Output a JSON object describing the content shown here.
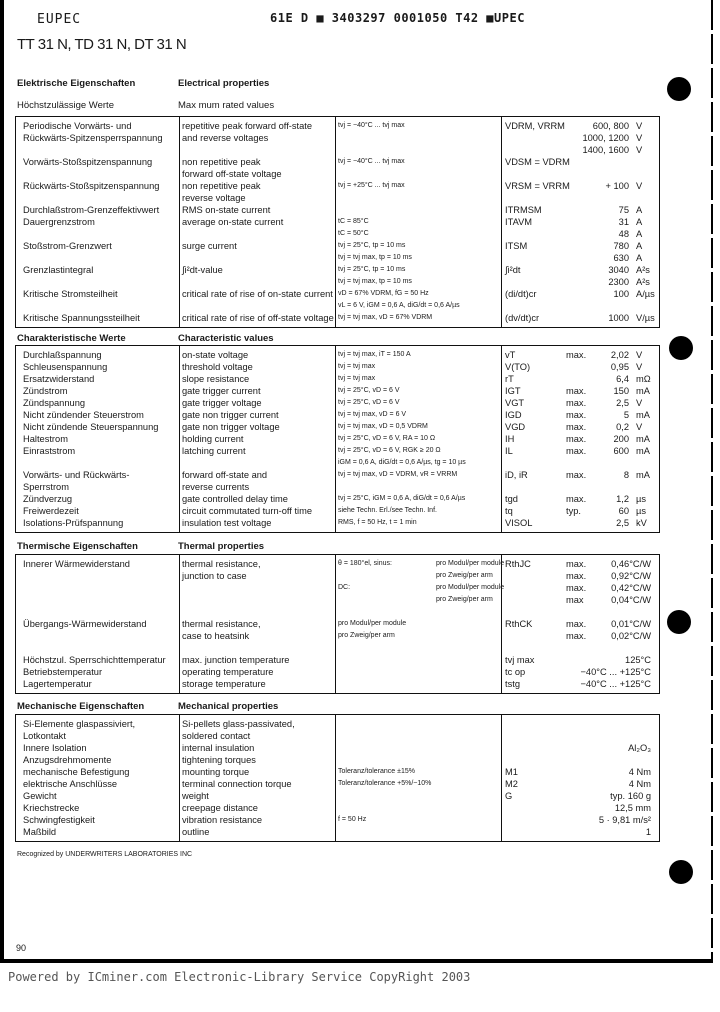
{
  "header": {
    "brand": "EUPEC",
    "code": "61E D ■ 3403297 0001050 T42 ■UPEC",
    "title": "TT 31 N, TD 31 N, DT 31 N"
  },
  "sections": [
    {
      "de": "Elektrische Eigenschaften",
      "en": "Electrical properties",
      "sub_de": "Höchstzulässige Werte",
      "sub_en": "Max mum rated values",
      "rows": [
        {
          "de": "Periodische Vorwärts- und",
          "en": "repetitive peak forward off-state",
          "ca": "tvj = −40°C ... tvj max",
          "cb": "",
          "sym": "VDRM, VRRM",
          "q": "",
          "val": "600, 800",
          "unit": "V"
        },
        {
          "de": "Rückwärts-Spitzensperrspannung",
          "en": "and reverse voltages",
          "ca": "",
          "cb": "",
          "sym": "",
          "q": "",
          "val": "1000, 1200",
          "unit": "V"
        },
        {
          "de": "",
          "en": "",
          "ca": "",
          "cb": "",
          "sym": "",
          "q": "",
          "val": "1400, 1600",
          "unit": "V"
        },
        {
          "de": "Vorwärts-Stoßspitzenspannung",
          "en": "non repetitive peak",
          "ca": "tvj = −40°C ... tvj max",
          "cb": "",
          "sym": "VDSM = VDRM",
          "q": "",
          "val": "",
          "unit": ""
        },
        {
          "de": "",
          "en": "forward off-state voltage",
          "ca": "",
          "cb": "",
          "sym": "",
          "q": "",
          "val": "",
          "unit": ""
        },
        {
          "de": "Rückwärts-Stoßspitzenspannung",
          "en": "non repetitive peak",
          "ca": "tvj = +25°C ... tvj max",
          "cb": "",
          "sym": "VRSM = VRRM",
          "q": "",
          "val": "+ 100",
          "unit": "V"
        },
        {
          "de": "",
          "en": "reverse voltage",
          "ca": "",
          "cb": "",
          "sym": "",
          "q": "",
          "val": "",
          "unit": ""
        },
        {
          "de": "Durchlaßstrom-Grenzeffektivwert",
          "en": "RMS on-state current",
          "ca": "",
          "cb": "",
          "sym": "ITRMSM",
          "q": "",
          "val": "75",
          "unit": "A"
        },
        {
          "de": "Dauergrenzstrom",
          "en": "average on-state current",
          "ca": "tC = 85°C",
          "cb": "",
          "sym": "ITAVM",
          "q": "",
          "val": "31",
          "unit": "A"
        },
        {
          "de": "",
          "en": "",
          "ca": "tC = 50°C",
          "cb": "",
          "sym": "",
          "q": "",
          "val": "48",
          "unit": "A"
        },
        {
          "de": "Stoßstrom-Grenzwert",
          "en": "surge current",
          "ca": "tvj = 25°C, tp = 10 ms",
          "cb": "",
          "sym": "ITSM",
          "q": "",
          "val": "780",
          "unit": "A"
        },
        {
          "de": "",
          "en": "",
          "ca": "tvj = tvj max, tp = 10 ms",
          "cb": "",
          "sym": "",
          "q": "",
          "val": "630",
          "unit": "A"
        },
        {
          "de": "Grenzlastintegral",
          "en": "∫i²dt-value",
          "ca": "tvj = 25°C, tp = 10 ms",
          "cb": "",
          "sym": "∫i²dt",
          "q": "",
          "val": "3040",
          "unit": "A²s"
        },
        {
          "de": "",
          "en": "",
          "ca": "tvj = tvj max, tp = 10 ms",
          "cb": "",
          "sym": "",
          "q": "",
          "val": "2300",
          "unit": "A²s"
        },
        {
          "de": "Kritische Stromsteilheit",
          "en": "critical rate of rise of on-state current",
          "ca": "vD = 67% VDRM, fG = 50 Hz",
          "cb": "",
          "sym": "(di/dt)cr",
          "q": "",
          "val": "100",
          "unit": "A/µs"
        },
        {
          "de": "",
          "en": "",
          "ca": "vL = 6 V, iGM = 0,6 A, diG/dt = 0,6 A/µs",
          "cb": "",
          "sym": "",
          "q": "",
          "val": "",
          "unit": ""
        },
        {
          "de": "Kritische Spannungssteilheit",
          "en": "critical rate of rise of off-state voltage",
          "ca": "tvj = tvj max, vD = 67% VDRM",
          "cb": "",
          "sym": "(dv/dt)cr",
          "q": "",
          "val": "1000",
          "unit": "V/µs"
        }
      ]
    },
    {
      "de": "Charakteristische Werte",
      "en": "Characteristic values",
      "rows": [
        {
          "de": "Durchlaßspannung",
          "en": "on-state voltage",
          "ca": "tvj = tvj max, iT = 150 A",
          "cb": "",
          "sym": "vT",
          "q": "max.",
          "val": "2,02",
          "unit": "V"
        },
        {
          "de": "Schleusenspannung",
          "en": "threshold voltage",
          "ca": "tvj = tvj max",
          "cb": "",
          "sym": "V(TO)",
          "q": "",
          "val": "0,95",
          "unit": "V"
        },
        {
          "de": "Ersatzwiderstand",
          "en": "slope resistance",
          "ca": "tvj = tvj max",
          "cb": "",
          "sym": "rT",
          "q": "",
          "val": "6,4",
          "unit": "mΩ"
        },
        {
          "de": "Zündstrom",
          "en": "gate trigger current",
          "ca": "tvj = 25°C, vD = 6 V",
          "cb": "",
          "sym": "IGT",
          "q": "max.",
          "val": "150",
          "unit": "mA"
        },
        {
          "de": "Zündspannung",
          "en": "gate trigger voltage",
          "ca": "tvj = 25°C, vD = 6 V",
          "cb": "",
          "sym": "VGT",
          "q": "max.",
          "val": "2,5",
          "unit": "V"
        },
        {
          "de": "Nicht zündender Steuerstrom",
          "en": "gate non trigger current",
          "ca": "tvj = tvj max, vD = 6 V",
          "cb": "",
          "sym": "IGD",
          "q": "max.",
          "val": "5",
          "unit": "mA"
        },
        {
          "de": "Nicht zündende Steuerspannung",
          "en": "gate non trigger voltage",
          "ca": "tvj = tvj max, vD = 0,5 VDRM",
          "cb": "",
          "sym": "VGD",
          "q": "max.",
          "val": "0,2",
          "unit": "V"
        },
        {
          "de": "Haltestrom",
          "en": "holding current",
          "ca": "tvj = 25°C, vD = 6 V, RA = 10 Ω",
          "cb": "",
          "sym": "IH",
          "q": "max.",
          "val": "200",
          "unit": "mA"
        },
        {
          "de": "Einraststrom",
          "en": "latching current",
          "ca": "tvj = 25°C, vD = 6 V, RGK ≥ 20 Ω",
          "cb": "",
          "sym": "IL",
          "q": "max.",
          "val": "600",
          "unit": "mA"
        },
        {
          "de": "",
          "en": "",
          "ca": "iGM = 0,6 A, diG/dt = 0,6 A/µs, tg = 10 µs",
          "cb": "",
          "sym": "",
          "q": "",
          "val": "",
          "unit": ""
        },
        {
          "de": "Vorwärts- und Rückwärts-",
          "en": "forward off-state and",
          "ca": "tvj = tvj max, vD = VDRM, vR = VRRM",
          "cb": "",
          "sym": "iD, iR",
          "q": "max.",
          "val": "8",
          "unit": "mA"
        },
        {
          "de": "Sperrstrom",
          "en": "reverse currents",
          "ca": "",
          "cb": "",
          "sym": "",
          "q": "",
          "val": "",
          "unit": ""
        },
        {
          "de": "Zündverzug",
          "en": "gate controlled delay time",
          "ca": "tvj = 25°C, iGM = 0,6 A, diG/dt = 0,6 A/µs",
          "cb": "",
          "sym": "tgd",
          "q": "max.",
          "val": "1,2",
          "unit": "µs"
        },
        {
          "de": "Freiwerdezeit",
          "en": "circuit commutated turn-off time",
          "ca": "siehe Techn. Erl./see Techn. Inf.",
          "cb": "",
          "sym": "tq",
          "q": "typ.",
          "val": "60",
          "unit": "µs"
        },
        {
          "de": "Isolations-Prüfspannung",
          "en": "insulation test voltage",
          "ca": "RMS, f = 50 Hz, t = 1 min",
          "cb": "",
          "sym": "VISOL",
          "q": "",
          "val": "2,5",
          "unit": "kV"
        }
      ]
    },
    {
      "de": "Thermische Eigenschaften",
      "en": "Thermal properties",
      "rows": [
        {
          "de": "Innerer Wärmewiderstand",
          "en": "thermal resistance,",
          "ca": "θ = 180°el, sinus:",
          "cb": "pro Modul/per module",
          "sym": "RthJC",
          "q": "max.",
          "val": "0,46°C/W",
          "unit": ""
        },
        {
          "de": "",
          "en": "junction to case",
          "ca": "",
          "cb": "pro Zweig/per arm",
          "sym": "",
          "q": "max.",
          "val": "0,92°C/W",
          "unit": ""
        },
        {
          "de": "",
          "en": "",
          "ca": "DC:",
          "cb": "pro Modul/per module",
          "sym": "",
          "q": "max.",
          "val": "0,42°C/W",
          "unit": ""
        },
        {
          "de": "",
          "en": "",
          "ca": "",
          "cb": "pro Zweig/per arm",
          "sym": "",
          "q": "max",
          "val": "0,04°C/W",
          "unit": ""
        },
        {
          "de": "",
          "en": "",
          "ca": "",
          "cb": "",
          "sym": "",
          "q": "",
          "val": "",
          "unit": ""
        },
        {
          "de": "Übergangs-Wärmewiderstand",
          "en": "thermal resistance,",
          "ca": "pro Modul/per module",
          "cb": "",
          "sym": "RthCK",
          "q": "max.",
          "val": "0,01°C/W",
          "unit": ""
        },
        {
          "de": "",
          "en": "case to heatsink",
          "ca": "pro Zweig/per arm",
          "cb": "",
          "sym": "",
          "q": "max.",
          "val": "0,02°C/W",
          "unit": ""
        },
        {
          "de": "",
          "en": "",
          "ca": "",
          "cb": "",
          "sym": "",
          "q": "",
          "val": "",
          "unit": ""
        },
        {
          "de": "Höchstzul. Sperrschichttemperatur",
          "en": "max. junction temperature",
          "ca": "",
          "cb": "",
          "sym": "tvj max",
          "q": "",
          "val": "125°C",
          "unit": ""
        },
        {
          "de": "Betriebstemperatur",
          "en": "operating temperature",
          "ca": "",
          "cb": "",
          "sym": "tc op",
          "q": "",
          "val": "−40°C ... +125°C",
          "unit": ""
        },
        {
          "de": "Lagertemperatur",
          "en": "storage temperature",
          "ca": "",
          "cb": "",
          "sym": "tstg",
          "q": "",
          "val": "−40°C ... +125°C",
          "unit": ""
        }
      ]
    },
    {
      "de": "Mechanische Eigenschaften",
      "en": "Mechanical properties",
      "rows": [
        {
          "de": "Si-Elemente glaspassiviert,",
          "en": "Si-pellets glass-passivated,",
          "ca": "",
          "cb": "",
          "sym": "",
          "q": "",
          "val": "",
          "unit": ""
        },
        {
          "de": "Lotkontakt",
          "en": "soldered contact",
          "ca": "",
          "cb": "",
          "sym": "",
          "q": "",
          "val": "",
          "unit": ""
        },
        {
          "de": "Innere Isolation",
          "en": "internal insulation",
          "ca": "",
          "cb": "",
          "sym": "",
          "q": "",
          "val": "Al₂O₃",
          "unit": ""
        },
        {
          "de": "Anzugsdrehmomente",
          "en": "tightening torques",
          "ca": "",
          "cb": "",
          "sym": "",
          "q": "",
          "val": "",
          "unit": ""
        },
        {
          "de": "mechanische Befestigung",
          "en": "mounting torque",
          "ca": "Toleranz/tolerance ±15%",
          "cb": "",
          "sym": "M1",
          "q": "",
          "val": "4 Nm",
          "unit": ""
        },
        {
          "de": "elektrische Anschlüsse",
          "en": "terminal connection torque",
          "ca": "Toleranz/tolerance +5%/−10%",
          "cb": "",
          "sym": "M2",
          "q": "",
          "val": "4 Nm",
          "unit": ""
        },
        {
          "de": "Gewicht",
          "en": "weight",
          "ca": "",
          "cb": "",
          "sym": "G",
          "q": "",
          "val": "typ. 160 g",
          "unit": ""
        },
        {
          "de": "Kriechstrecke",
          "en": "creepage distance",
          "ca": "",
          "cb": "",
          "sym": "",
          "q": "",
          "val": "12,5 mm",
          "unit": ""
        },
        {
          "de": "Schwingfestigkeit",
          "en": "vibration resistance",
          "ca": "f = 50 Hz",
          "cb": "",
          "sym": "",
          "q": "",
          "val": "5 · 9,81 m/s²",
          "unit": ""
        },
        {
          "de": "Maßbild",
          "en": "outline",
          "ca": "",
          "cb": "",
          "sym": "",
          "q": "",
          "val": "1",
          "unit": ""
        }
      ]
    }
  ],
  "note": "Recognized by UNDERWRITERS LABORATORIES INC",
  "page_number": "90",
  "footer": "Powered by ICminer.com Electronic-Library Service CopyRight 2003"
}
